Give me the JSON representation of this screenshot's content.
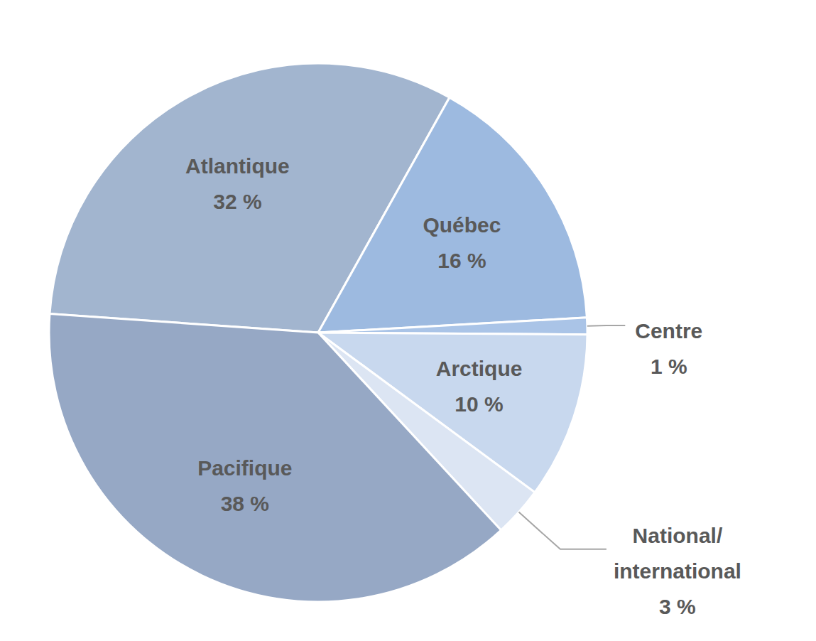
{
  "chart_data": {
    "type": "pie",
    "categories": [
      "Atlantique",
      "Québec",
      "Centre",
      "Arctique",
      "National/international",
      "Pacifique"
    ],
    "values": [
      32,
      16,
      1,
      10,
      3,
      38
    ],
    "value_labels": [
      "32 %",
      "16 %",
      "1 %",
      "10 %",
      "3 %",
      "38 %"
    ],
    "colors": [
      "#a2b5cf",
      "#9dbae0",
      "#aac4e7",
      "#c8d8ee",
      "#dce5f3",
      "#96a8c5"
    ],
    "data_labels": true
  }
}
